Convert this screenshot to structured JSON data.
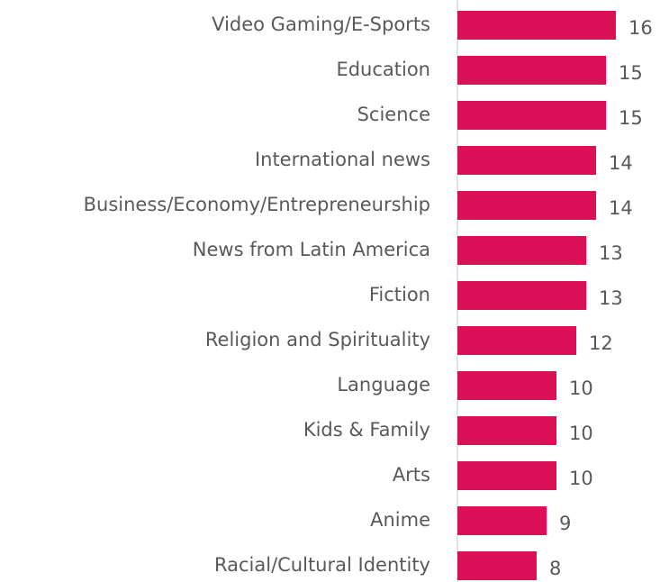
{
  "chart_data": {
    "type": "bar",
    "orientation": "horizontal",
    "categories": [
      "Video Gaming/E-Sports",
      "Education",
      "Science",
      "International news",
      "Business/Economy/Entrepreneurship",
      "News from Latin America",
      "Fiction",
      "Religion and Spirituality",
      "Language",
      "Kids & Family",
      "Arts",
      "Anime",
      "Racial/Cultural Identity"
    ],
    "values": [
      16,
      15,
      15,
      14,
      14,
      13,
      13,
      12,
      10,
      10,
      10,
      9,
      8
    ],
    "color": "#db1158",
    "xlim": [
      0,
      20
    ],
    "data_labels": true
  }
}
